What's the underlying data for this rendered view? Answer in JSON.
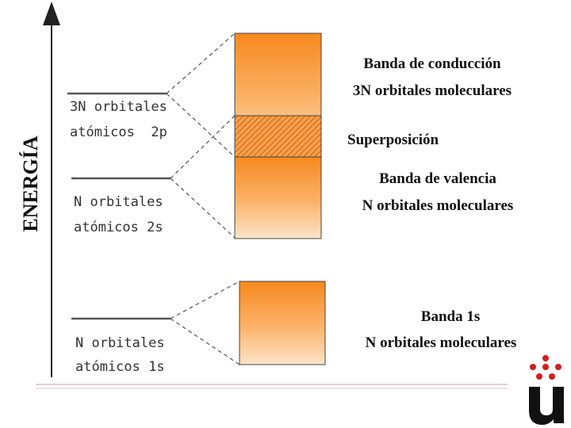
{
  "axis_label": "ENERGÍA",
  "atomic_levels": [
    {
      "lines": [
        "3N orbitales",
        "atómicos  2p"
      ]
    },
    {
      "lines": [
        "N orbitales",
        "atómicos 2s"
      ]
    },
    {
      "lines": [
        "N orbitales",
        "atómicos 1s"
      ]
    }
  ],
  "bands": [
    {
      "lines": [
        "Banda de conducción",
        "3N orbitales moleculares"
      ]
    },
    {
      "lines": [
        "Superposición"
      ]
    },
    {
      "lines": [
        "Banda de valencia",
        "N orbitales moleculares"
      ]
    },
    {
      "lines": [
        "Banda 1s",
        "N orbitales moleculares"
      ]
    }
  ]
}
